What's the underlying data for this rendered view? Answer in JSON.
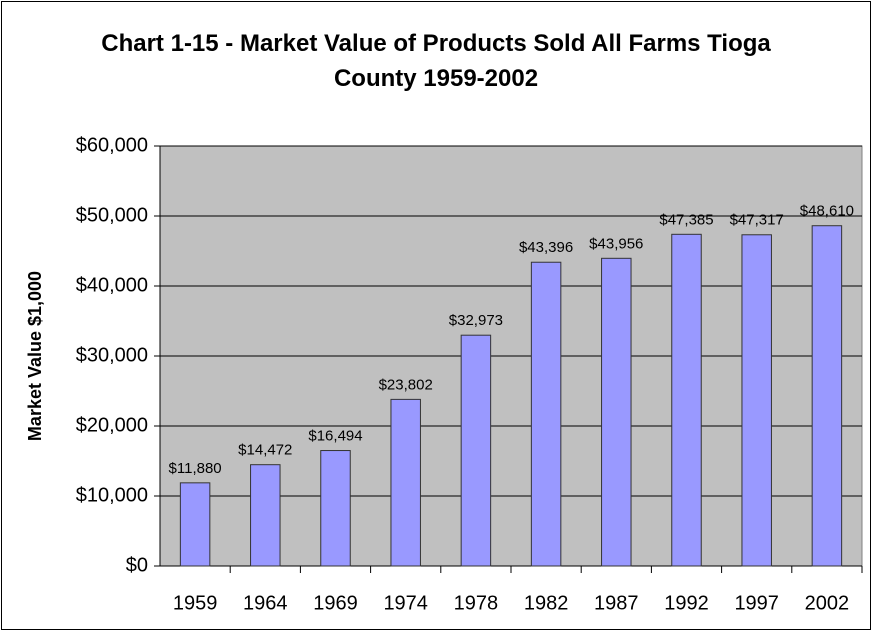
{
  "chart_data": {
    "type": "bar",
    "title": "Chart 1-15 - Market Value of Products Sold All Farms Tioga County 1959-2002",
    "ylabel": "Market Value $1,000",
    "categories": [
      "1959",
      "1964",
      "1969",
      "1974",
      "1978",
      "1982",
      "1987",
      "1992",
      "1997",
      "2002"
    ],
    "values": [
      11880,
      14472,
      16494,
      23802,
      32973,
      43396,
      43956,
      47385,
      47317,
      48610
    ],
    "value_labels": [
      "$11,880",
      "$14,472",
      "$16,494",
      "$23,802",
      "$32,973",
      "$43,396",
      "$43,956",
      "$47,385",
      "$47,317",
      "$48,610"
    ],
    "color": "#9999ff",
    "ylim": [
      0,
      60000
    ],
    "yticks": [
      {
        "value": 0,
        "label": "$0"
      },
      {
        "value": 10000,
        "label": "$10,000"
      },
      {
        "value": 20000,
        "label": "$20,000"
      },
      {
        "value": 30000,
        "label": "$30,000"
      },
      {
        "value": 40000,
        "label": "$40,000"
      },
      {
        "value": 50000,
        "label": "$50,000"
      },
      {
        "value": 60000,
        "label": "$60,000"
      }
    ],
    "grid": true
  }
}
